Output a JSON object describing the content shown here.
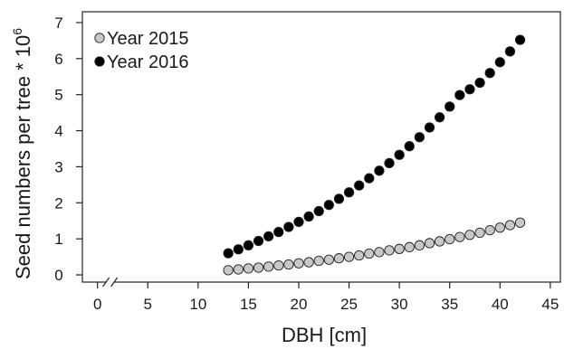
{
  "chart_data": {
    "type": "scatter",
    "title": "",
    "xlabel": "DBH [cm]",
    "ylabel": "Seed numbers per tree * 10",
    "ylabel_superscript": "6",
    "xlim": [
      -1.5,
      46
    ],
    "ylim": [
      -0.2,
      7.3
    ],
    "x_ticks": [
      0,
      5,
      10,
      15,
      20,
      25,
      30,
      35,
      40,
      45
    ],
    "y_ticks": [
      0,
      1,
      2,
      3,
      4,
      5,
      6,
      7
    ],
    "axis_break": "between 0 and 5 on x-axis",
    "grid": false,
    "legend_position": "top-left",
    "x": [
      13,
      14,
      15,
      16,
      17,
      18,
      19,
      20,
      21,
      22,
      23,
      24,
      25,
      26,
      27,
      28,
      29,
      30,
      31,
      32,
      33,
      34,
      35,
      36,
      37,
      38,
      39,
      40,
      41,
      42
    ],
    "series": [
      {
        "name": "Year 2015",
        "color": "#c8c8c8",
        "values": [
          0.13,
          0.15,
          0.18,
          0.2,
          0.23,
          0.26,
          0.29,
          0.32,
          0.35,
          0.39,
          0.42,
          0.46,
          0.5,
          0.54,
          0.59,
          0.63,
          0.68,
          0.72,
          0.77,
          0.82,
          0.88,
          0.93,
          0.99,
          1.05,
          1.11,
          1.17,
          1.24,
          1.31,
          1.38,
          1.45
        ]
      },
      {
        "name": "Year 2016",
        "color": "#000000",
        "values": [
          0.6,
          0.71,
          0.82,
          0.94,
          1.07,
          1.19,
          1.33,
          1.47,
          1.62,
          1.77,
          1.94,
          2.11,
          2.29,
          2.48,
          2.68,
          2.89,
          3.1,
          3.33,
          3.57,
          3.82,
          4.09,
          4.37,
          4.67,
          4.99,
          5.15,
          5.33,
          5.6,
          5.9,
          6.2,
          6.52
        ]
      }
    ]
  }
}
